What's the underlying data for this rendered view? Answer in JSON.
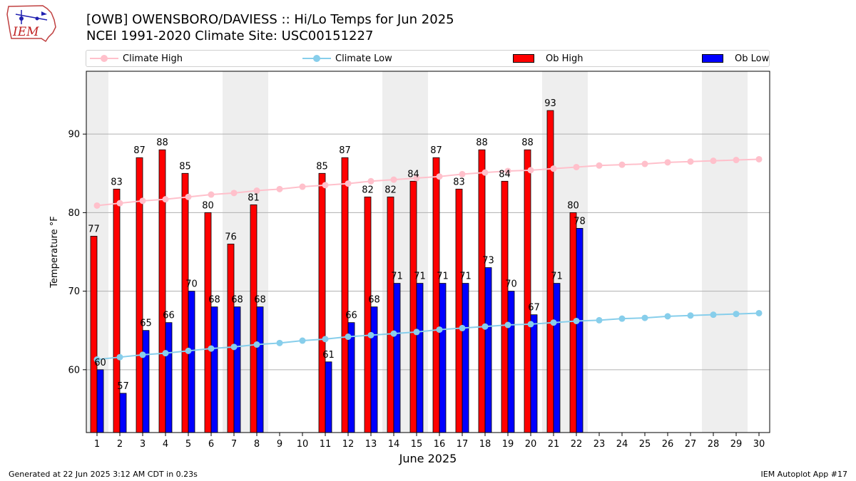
{
  "header": {
    "title_line1": "[OWB] OWENSBORO/DAVIESS :: Hi/Lo Temps for Jun 2025",
    "title_line2": "NCEI 1991-2020 Climate Site: USC00151227",
    "logo_text": "IEM"
  },
  "legend": {
    "climate_high": "Climate High",
    "climate_low": "Climate Low",
    "ob_high": "Ob High",
    "ob_low": "Ob Low"
  },
  "footer": {
    "left": "Generated at 22 Jun 2025 3:12 AM CDT in 0.23s",
    "right": "IEM Autoplot App #17"
  },
  "colors": {
    "ob_high": "#ff0000",
    "ob_low": "#0000ff",
    "climate_high": "#ffc0cb",
    "climate_low": "#87ceeb",
    "weekend_shade": "#eeeeee",
    "grid": "#b0b0b0"
  },
  "chart_data": {
    "type": "bar",
    "xlabel": "June 2025",
    "ylabel": "Temperature °F",
    "ylim": [
      52,
      98
    ],
    "yticks": [
      60,
      70,
      80,
      90
    ],
    "x": [
      1,
      2,
      3,
      4,
      5,
      6,
      7,
      8,
      9,
      10,
      11,
      12,
      13,
      14,
      15,
      16,
      17,
      18,
      19,
      20,
      21,
      22,
      23,
      24,
      25,
      26,
      27,
      28,
      29,
      30
    ],
    "weekend_spans": [
      [
        1,
        1
      ],
      [
        7,
        8
      ],
      [
        14,
        15
      ],
      [
        21,
        22
      ],
      [
        28,
        29
      ]
    ],
    "ob_high": [
      77,
      83,
      87,
      88,
      85,
      80,
      76,
      81,
      null,
      null,
      85,
      87,
      82,
      82,
      84,
      87,
      83,
      88,
      84,
      88,
      93,
      80,
      null,
      null,
      null,
      null,
      null,
      null,
      null,
      null
    ],
    "ob_low": [
      60,
      57,
      65,
      66,
      70,
      68,
      68,
      68,
      null,
      null,
      61,
      66,
      68,
      71,
      71,
      71,
      71,
      73,
      70,
      67,
      71,
      78,
      null,
      null,
      null,
      null,
      null,
      null,
      null,
      null
    ],
    "climate_high": [
      80.9,
      81.2,
      81.5,
      81.7,
      82.0,
      82.3,
      82.5,
      82.8,
      83.0,
      83.3,
      83.5,
      83.7,
      84.0,
      84.2,
      84.4,
      84.6,
      84.9,
      85.1,
      85.3,
      85.4,
      85.6,
      85.8,
      86.0,
      86.1,
      86.2,
      86.4,
      86.5,
      86.6,
      86.7,
      86.8
    ],
    "climate_low": [
      61.3,
      61.6,
      61.9,
      62.1,
      62.4,
      62.7,
      62.9,
      63.2,
      63.4,
      63.7,
      63.9,
      64.2,
      64.4,
      64.6,
      64.8,
      65.1,
      65.3,
      65.5,
      65.7,
      65.8,
      66.0,
      66.2,
      66.3,
      66.5,
      66.6,
      66.8,
      66.9,
      67.0,
      67.1,
      67.2
    ],
    "legend_position": "top",
    "grid": true
  }
}
